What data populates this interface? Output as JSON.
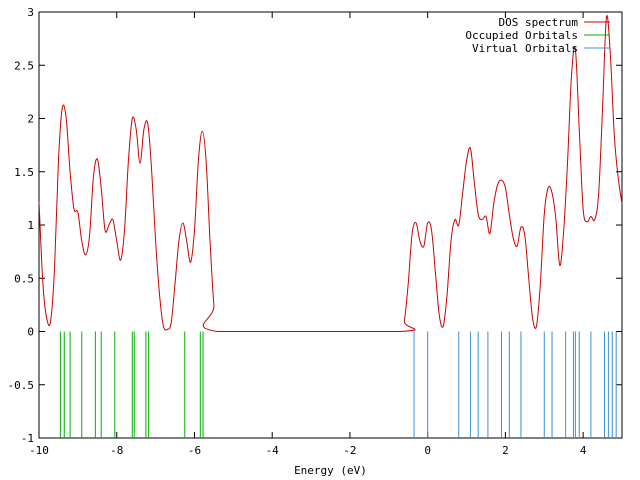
{
  "chart_data": {
    "type": "line",
    "title": "",
    "xlabel": "Energy (eV)",
    "ylabel": "",
    "xlim": [
      -10,
      5
    ],
    "ylim": [
      -1,
      3
    ],
    "grid": false,
    "legend_position": "top-right",
    "xticks": [
      -10,
      -8,
      -6,
      -4,
      -2,
      0,
      2,
      4
    ],
    "xtick_labels": [
      "-10",
      "-8",
      "-6",
      "-4",
      "-2",
      "0",
      "2",
      "4"
    ],
    "yticks": [
      -1,
      -0.5,
      0,
      0.5,
      1,
      1.5,
      2,
      2.5,
      3
    ],
    "ytick_labels": [
      "-1",
      "-0.5",
      "0",
      "0.5",
      "1",
      "1.5",
      "2",
      "2.5",
      "3"
    ],
    "series": [
      {
        "name": "DOS spectrum",
        "color": "#cc0000",
        "style": "curve",
        "x": [
          -10,
          -9.9,
          -9.8,
          -9.7,
          -9.6,
          -9.5,
          -9.4,
          -9.3,
          -9.2,
          -9.1,
          -9.0,
          -8.9,
          -8.8,
          -8.7,
          -8.6,
          -8.5,
          -8.4,
          -8.3,
          -8.2,
          -8.1,
          -8.0,
          -7.9,
          -7.8,
          -7.7,
          -7.6,
          -7.5,
          -7.4,
          -7.3,
          -7.2,
          -7.1,
          -7.0,
          -6.9,
          -6.8,
          -6.7,
          -6.6,
          -6.5,
          -6.4,
          -6.3,
          -6.2,
          -6.1,
          -6.0,
          -5.9,
          -5.8,
          -5.7,
          -5.6,
          -5.5,
          -5.4,
          -0.7,
          -0.6,
          -0.5,
          -0.4,
          -0.3,
          -0.2,
          -0.1,
          0.0,
          0.1,
          0.2,
          0.3,
          0.4,
          0.5,
          0.6,
          0.7,
          0.8,
          0.9,
          1.0,
          1.1,
          1.2,
          1.3,
          1.4,
          1.5,
          1.6,
          1.7,
          1.8,
          1.9,
          2.0,
          2.1,
          2.2,
          2.3,
          2.4,
          2.5,
          2.6,
          2.7,
          2.8,
          2.9,
          3.0,
          3.1,
          3.2,
          3.3,
          3.4,
          3.5,
          3.6,
          3.7,
          3.8,
          3.9,
          4.0,
          4.1,
          4.2,
          4.3,
          4.4,
          4.5,
          4.6,
          4.7,
          4.8,
          4.9,
          5.0
        ],
        "y": [
          1.22,
          0.45,
          0.12,
          0.1,
          0.6,
          1.6,
          2.1,
          2.0,
          1.5,
          1.15,
          1.12,
          0.85,
          0.72,
          0.9,
          1.45,
          1.62,
          1.35,
          0.95,
          1.0,
          1.05,
          0.85,
          0.67,
          0.95,
          1.6,
          2.0,
          1.9,
          1.58,
          1.9,
          1.95,
          1.5,
          0.85,
          0.35,
          0.05,
          0.02,
          0.08,
          0.45,
          0.85,
          1.02,
          0.85,
          0.65,
          0.95,
          1.6,
          1.88,
          1.6,
          0.85,
          0.25,
          0.0,
          0.0,
          0.1,
          0.45,
          0.92,
          1.02,
          0.85,
          0.8,
          1.02,
          0.95,
          0.55,
          0.15,
          0.05,
          0.35,
          0.85,
          1.05,
          1.0,
          1.3,
          1.6,
          1.72,
          1.4,
          1.1,
          1.05,
          1.08,
          0.92,
          1.2,
          1.38,
          1.42,
          1.35,
          1.1,
          0.88,
          0.8,
          0.98,
          0.9,
          0.5,
          0.12,
          0.05,
          0.45,
          1.1,
          1.35,
          1.3,
          1.05,
          0.62,
          0.95,
          1.6,
          2.4,
          2.65,
          1.9,
          1.15,
          1.03,
          1.08,
          1.05,
          1.3,
          2.1,
          2.95,
          2.6,
          1.85,
          1.45,
          1.2
        ]
      },
      {
        "name": "Occupied Orbitals",
        "color": "#00b000",
        "style": "sticks",
        "x": [
          -9.45,
          -9.35,
          -9.2,
          -8.9,
          -8.55,
          -8.4,
          -8.05,
          -7.6,
          -7.55,
          -7.25,
          -7.18,
          -6.25,
          -5.85,
          -5.78
        ]
      },
      {
        "name": "Virtual Orbitals",
        "color": "#3d8fd6",
        "style": "sticks",
        "x": [
          -0.35,
          0.0,
          0.8,
          1.1,
          1.3,
          1.55,
          1.9,
          2.1,
          2.4,
          3.0,
          3.2,
          3.55,
          3.75,
          3.8,
          3.9,
          4.2,
          4.55,
          4.65,
          4.75,
          4.85
        ]
      }
    ],
    "stick_range": [
      -1,
      0
    ]
  }
}
